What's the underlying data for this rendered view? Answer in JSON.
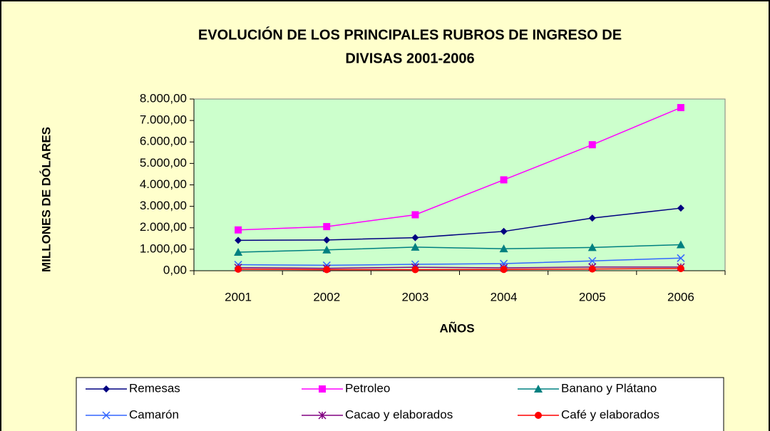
{
  "chart_data": {
    "type": "line",
    "title": [
      "EVOLUCIÓN DE LOS PRINCIPALES RUBROS DE INGRESO DE",
      "DIVISAS 2001-2006"
    ],
    "x_label": "AÑOS",
    "y_label": "MILLONES DE DÓLARES",
    "categories": [
      "2001",
      "2002",
      "2003",
      "2004",
      "2005",
      "2006"
    ],
    "ylim": [
      0,
      8000
    ],
    "yticks": [
      {
        "value": 0,
        "label": "0,00"
      },
      {
        "value": 1000,
        "label": "1.000,00"
      },
      {
        "value": 2000,
        "label": "2.000,00"
      },
      {
        "value": 3000,
        "label": "3.000,00"
      },
      {
        "value": 4000,
        "label": "4.000,00"
      },
      {
        "value": 5000,
        "label": "5.000,00"
      },
      {
        "value": 6000,
        "label": "6.000,00"
      },
      {
        "value": 7000,
        "label": "7.000,00"
      },
      {
        "value": 8000,
        "label": "8.000,00"
      }
    ],
    "legend": "bottom",
    "series": [
      {
        "name": "Remesas",
        "color": "#000080",
        "marker": "diamond",
        "values": [
          1415,
          1432,
          1540,
          1832,
          2454,
          2915
        ]
      },
      {
        "name": "Petroleo",
        "color": "#FF00FF",
        "marker": "square",
        "values": [
          1900,
          2055,
          2607,
          4234,
          5870,
          7600
        ]
      },
      {
        "name": "Banano y Plátano",
        "color": "#008080",
        "marker": "triangle",
        "values": [
          864,
          969,
          1100,
          1023,
          1084,
          1213
        ]
      },
      {
        "name": "Camarón",
        "color": "#3366FF",
        "marker": "x",
        "values": [
          281,
          252,
          299,
          330,
          457,
          588
        ]
      },
      {
        "name": "Cacao y elaborados",
        "color": "#800080",
        "marker": "star",
        "values": [
          145,
          110,
          163,
          134,
          172,
          171
        ]
      },
      {
        "name": "Café y elaborados",
        "color": "#FF0000",
        "marker": "circle",
        "values": [
          70,
          50,
          50,
          60,
          80,
          100
        ]
      }
    ]
  }
}
